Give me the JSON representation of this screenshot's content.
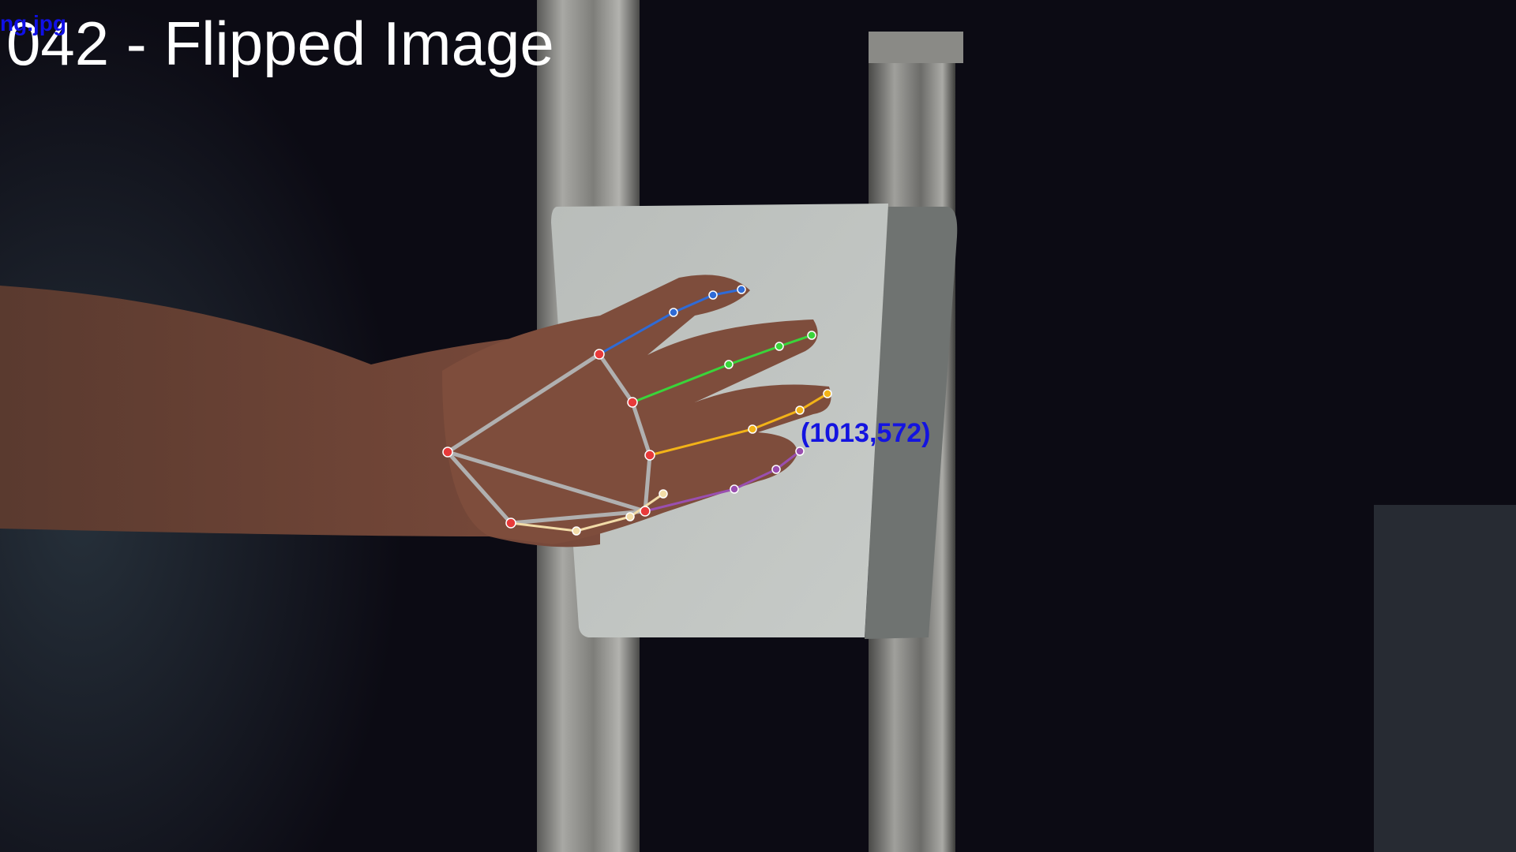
{
  "overlay": {
    "title": "042 - Flipped Image",
    "filename": "ng.jpg",
    "coordinate_readout": "(1013,572)"
  },
  "hand_landmarks": {
    "colors": {
      "palm": "#e83a3a",
      "palm_lines": "#b0b0b0",
      "thumb": "#f2dca8",
      "index": "#2f6bd6",
      "middle": "#3ad43a",
      "ring": "#f2b318",
      "pinky": "#9a4fb0"
    }
  }
}
